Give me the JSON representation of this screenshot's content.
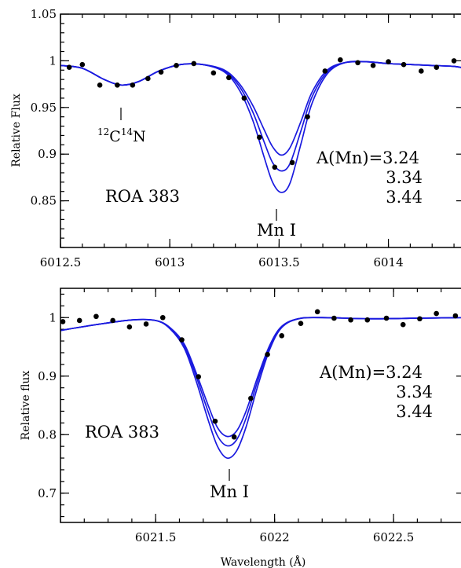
{
  "chart_data": [
    {
      "type": "line",
      "panel": "top",
      "ylabel": "Relative Flux",
      "xlabel": "",
      "xlim": [
        6012.5,
        6014.35
      ],
      "ylim": [
        0.8,
        1.05
      ],
      "xticks": [
        6012.5,
        6013,
        6013.5,
        6014
      ],
      "xtick_labels": [
        "6012.5",
        "6013",
        "6013.5",
        "6014"
      ],
      "yticks": [
        0.85,
        0.9,
        0.95,
        1,
        1.05
      ],
      "ytick_labels": [
        "0.85",
        "0.9",
        "0.95",
        "1",
        "1.05"
      ],
      "annotations": {
        "star": "ROA 383",
        "abundance_label": "A(Mn)=3.24",
        "abundance_values": [
          "3.34",
          "3.44"
        ],
        "line_label": "Mn I",
        "cn_iso_1": "12",
        "cn_elem_1": "C",
        "cn_iso_2": "14",
        "cn_elem_2": "N"
      },
      "observed": [
        [
          6012.54,
          0.993
        ],
        [
          6012.6,
          0.996
        ],
        [
          6012.68,
          0.974
        ],
        [
          6012.76,
          0.974
        ],
        [
          6012.83,
          0.974
        ],
        [
          6012.9,
          0.981
        ],
        [
          6012.96,
          0.988
        ],
        [
          6013.03,
          0.995
        ],
        [
          6013.11,
          0.997
        ],
        [
          6013.2,
          0.987
        ],
        [
          6013.27,
          0.982
        ],
        [
          6013.34,
          0.96
        ],
        [
          6013.41,
          0.918
        ],
        [
          6013.48,
          0.886
        ],
        [
          6013.56,
          0.891
        ],
        [
          6013.63,
          0.94
        ],
        [
          6013.71,
          0.989
        ],
        [
          6013.78,
          1.001
        ],
        [
          6013.86,
          0.998
        ],
        [
          6013.93,
          0.995
        ],
        [
          6014.0,
          0.999
        ],
        [
          6014.07,
          0.996
        ],
        [
          6014.15,
          0.989
        ],
        [
          6014.22,
          0.993
        ],
        [
          6014.3,
          1.0
        ],
        [
          6014.36,
          0.988
        ]
      ],
      "series": [
        {
          "name": "3.24",
          "x": [
            6012.5,
            6012.6,
            6012.7,
            6012.78,
            6012.86,
            6012.95,
            6013.05,
            6013.15,
            6013.25,
            6013.32,
            6013.38,
            6013.43,
            6013.47,
            6013.51,
            6013.55,
            6013.6,
            6013.65,
            6013.72,
            6013.8,
            6013.9,
            6014.0,
            6014.1,
            6014.2,
            6014.3,
            6014.35
          ],
          "values": [
            0.995,
            0.992,
            0.98,
            0.974,
            0.978,
            0.989,
            0.996,
            0.996,
            0.99,
            0.975,
            0.952,
            0.927,
            0.908,
            0.899,
            0.907,
            0.935,
            0.966,
            0.99,
            0.998,
            0.999,
            0.997,
            0.996,
            0.995,
            0.994,
            0.992
          ]
        },
        {
          "name": "3.34",
          "x": [
            6012.5,
            6012.6,
            6012.7,
            6012.78,
            6012.86,
            6012.95,
            6013.05,
            6013.15,
            6013.25,
            6013.32,
            6013.38,
            6013.43,
            6013.47,
            6013.51,
            6013.55,
            6013.6,
            6013.65,
            6013.72,
            6013.8,
            6013.9,
            6014.0,
            6014.1,
            6014.2,
            6014.3,
            6014.35
          ],
          "values": [
            0.995,
            0.992,
            0.98,
            0.974,
            0.978,
            0.989,
            0.996,
            0.996,
            0.989,
            0.972,
            0.945,
            0.914,
            0.891,
            0.882,
            0.89,
            0.925,
            0.961,
            0.988,
            0.998,
            0.999,
            0.997,
            0.996,
            0.995,
            0.994,
            0.992
          ]
        },
        {
          "name": "3.44",
          "x": [
            6012.5,
            6012.6,
            6012.7,
            6012.78,
            6012.86,
            6012.95,
            6013.05,
            6013.15,
            6013.25,
            6013.32,
            6013.38,
            6013.43,
            6013.47,
            6013.51,
            6013.55,
            6013.6,
            6013.65,
            6013.72,
            6013.8,
            6013.9,
            6014.0,
            6014.1,
            6014.2,
            6014.3,
            6014.35
          ],
          "values": [
            0.995,
            0.992,
            0.98,
            0.974,
            0.978,
            0.989,
            0.996,
            0.996,
            0.988,
            0.968,
            0.936,
            0.898,
            0.87,
            0.859,
            0.869,
            0.911,
            0.954,
            0.986,
            0.998,
            0.999,
            0.997,
            0.996,
            0.995,
            0.994,
            0.992
          ]
        }
      ]
    },
    {
      "type": "line",
      "panel": "bottom",
      "ylabel": "Relative flux",
      "xlabel": "Wavelength (Å)",
      "xlim": [
        6021.1,
        6022.8
      ],
      "ylim": [
        0.65,
        1.05
      ],
      "xticks": [
        6021.5,
        6022,
        6022.5
      ],
      "xtick_labels": [
        "6021.5",
        "6022",
        "6022.5"
      ],
      "yticks": [
        0.7,
        0.8,
        0.9,
        1
      ],
      "ytick_labels": [
        "0.7",
        "0.8",
        "0.9",
        "1"
      ],
      "annotations": {
        "star": "ROA 383",
        "abundance_label": "A(Mn)=3.24",
        "abundance_values": [
          "3.34",
          "3.44"
        ],
        "line_label": "Mn I"
      },
      "observed": [
        [
          6021.11,
          0.993
        ],
        [
          6021.18,
          0.995
        ],
        [
          6021.25,
          1.002
        ],
        [
          6021.32,
          0.995
        ],
        [
          6021.39,
          0.984
        ],
        [
          6021.46,
          0.989
        ],
        [
          6021.53,
          1.0
        ],
        [
          6021.61,
          0.962
        ],
        [
          6021.68,
          0.899
        ],
        [
          6021.75,
          0.823
        ],
        [
          6021.83,
          0.796
        ],
        [
          6021.9,
          0.862
        ],
        [
          6021.97,
          0.937
        ],
        [
          6022.03,
          0.969
        ],
        [
          6022.11,
          0.99
        ],
        [
          6022.18,
          1.01
        ],
        [
          6022.25,
          0.999
        ],
        [
          6022.32,
          0.996
        ],
        [
          6022.39,
          0.996
        ],
        [
          6022.47,
          0.999
        ],
        [
          6022.54,
          0.988
        ],
        [
          6022.61,
          0.998
        ],
        [
          6022.68,
          1.007
        ],
        [
          6022.76,
          1.003
        ]
      ],
      "series": [
        {
          "name": "3.24",
          "x": [
            6021.1,
            6021.25,
            6021.4,
            6021.5,
            6021.56,
            6021.62,
            6021.67,
            6021.72,
            6021.76,
            6021.8,
            6021.84,
            6021.88,
            6021.93,
            6021.98,
            6022.03,
            6022.1,
            6022.2,
            6022.4,
            6022.6,
            6022.8
          ],
          "values": [
            0.978,
            0.988,
            0.996,
            0.995,
            0.983,
            0.955,
            0.906,
            0.851,
            0.812,
            0.797,
            0.806,
            0.84,
            0.9,
            0.953,
            0.985,
            0.998,
            1.0,
            0.998,
            0.999,
            1.0
          ]
        },
        {
          "name": "3.34",
          "x": [
            6021.1,
            6021.25,
            6021.4,
            6021.5,
            6021.56,
            6021.62,
            6021.67,
            6021.72,
            6021.76,
            6021.8,
            6021.84,
            6021.88,
            6021.93,
            6021.98,
            6022.03,
            6022.1,
            6022.2,
            6022.4,
            6022.6,
            6022.8
          ],
          "values": [
            0.978,
            0.988,
            0.996,
            0.995,
            0.982,
            0.952,
            0.9,
            0.84,
            0.798,
            0.781,
            0.791,
            0.828,
            0.893,
            0.95,
            0.984,
            0.998,
            1.0,
            0.998,
            0.999,
            1.0
          ]
        },
        {
          "name": "3.44",
          "x": [
            6021.1,
            6021.25,
            6021.4,
            6021.5,
            6021.56,
            6021.62,
            6021.67,
            6021.72,
            6021.76,
            6021.8,
            6021.84,
            6021.88,
            6021.93,
            6021.98,
            6022.03,
            6022.1,
            6022.2,
            6022.4,
            6022.6,
            6022.8
          ],
          "values": [
            0.978,
            0.988,
            0.996,
            0.995,
            0.981,
            0.948,
            0.892,
            0.826,
            0.78,
            0.76,
            0.772,
            0.813,
            0.884,
            0.946,
            0.983,
            0.998,
            1.0,
            0.998,
            0.999,
            1.0
          ]
        }
      ]
    }
  ]
}
